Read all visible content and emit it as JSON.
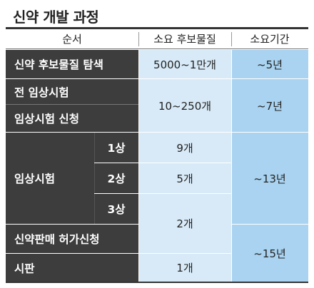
{
  "title": "신약 개발 과정",
  "header": {
    "col1": "순서",
    "col2": "소요 후보물질",
    "col3": "소요기간"
  },
  "rows": {
    "search": {
      "label": "신약 후보물질 탐색",
      "candidates": "5000~1만개",
      "period": "~5년"
    },
    "preclinical": {
      "label": "전 임상시험"
    },
    "apply": {
      "label": "임상시험 신청"
    },
    "preclinical_group": {
      "candidates": "10~250개",
      "period": "~7년"
    },
    "clinical": {
      "label": "임상시험",
      "phase1": "1상",
      "phase2": "2상",
      "phase3": "3상",
      "c1": "9개",
      "c2": "5개",
      "period": "~13년"
    },
    "approval": {
      "label": "신약판매 허가신청"
    },
    "phase3_approval": {
      "candidates": "2개"
    },
    "market": {
      "label": "시판",
      "candidates": "1개"
    },
    "approval_market": {
      "period": "~15년"
    }
  }
}
